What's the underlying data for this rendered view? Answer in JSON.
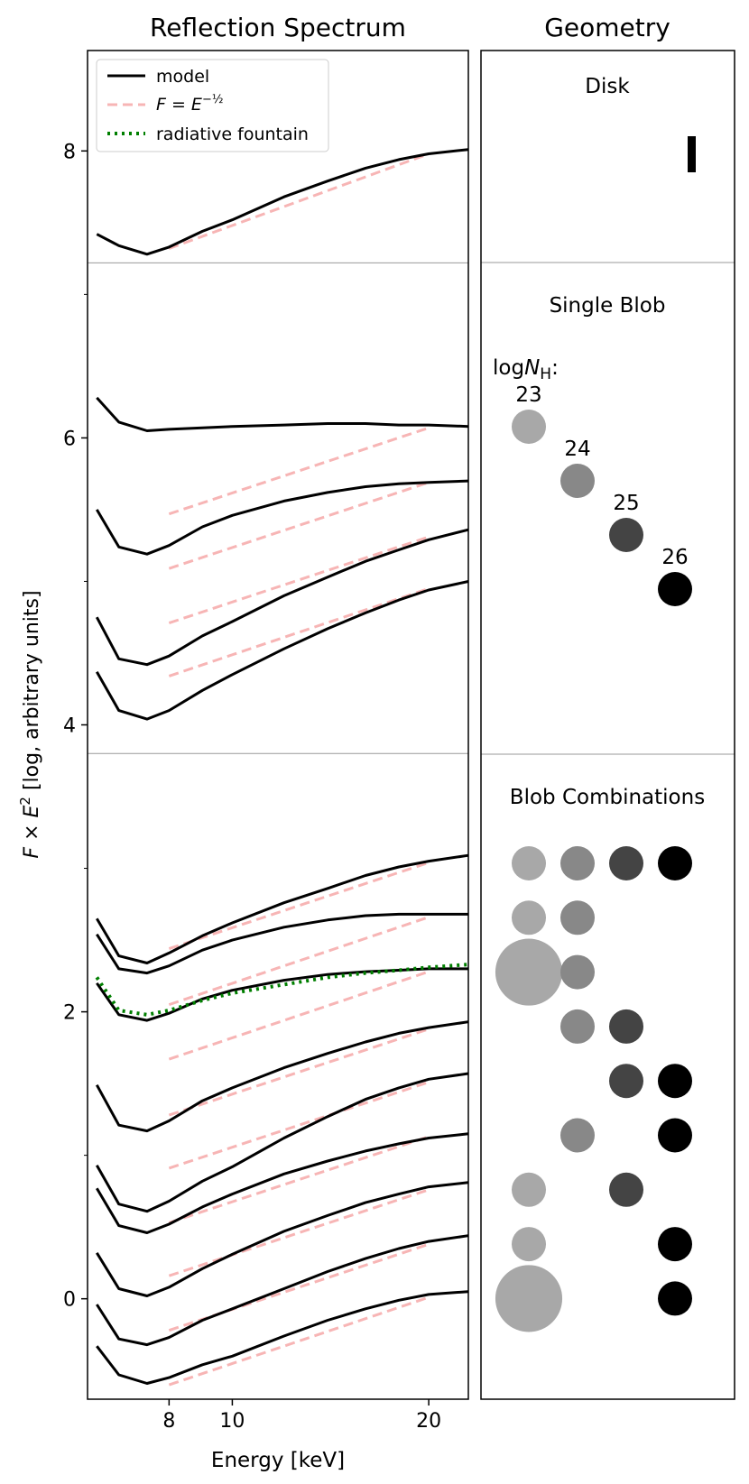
{
  "chart_data": {
    "type": "line",
    "panels": {
      "spectrum": {
        "title": "Reflection Spectrum",
        "xlabel": "Energy [keV]",
        "ylabel_prefix": "F × E",
        "ylabel_exp": "2",
        "ylabel_suffix": " [log, arbitrary units]",
        "xscale": "log",
        "xlim": [
          6.0,
          23.0
        ],
        "ylim": [
          -0.7,
          8.7
        ],
        "xticks": [
          {
            "value": 8,
            "label": "8"
          },
          {
            "value": 10,
            "label": "10"
          },
          {
            "value": 20,
            "label": "20"
          }
        ],
        "yticks": [
          {
            "value": 0,
            "label": "0"
          },
          {
            "value": 2,
            "label": "2"
          },
          {
            "value": 4,
            "label": "4"
          },
          {
            "value": 6,
            "label": "6"
          },
          {
            "value": 8,
            "label": "8"
          }
        ],
        "yticks_minor": [
          1,
          3,
          5,
          7
        ],
        "separators_y": [
          7.22,
          3.8
        ],
        "legend": {
          "position": "upper-left",
          "entries": [
            {
              "label": "model",
              "style": "solid",
              "color": "#000000"
            },
            {
              "label": "F = E^-1/2",
              "label_base": "F = E",
              "label_exp": "−½",
              "style": "dashed",
              "color": "#f7b5b5"
            },
            {
              "label": "radiative fountain",
              "style": "dotted",
              "color": "#007f00"
            }
          ]
        },
        "model_x": [
          6.2,
          6.7,
          7.4,
          8,
          9,
          10,
          12,
          14,
          16,
          18,
          20,
          23
        ],
        "model_series": [
          {
            "name": "disk",
            "values": [
              7.42,
              7.34,
              7.28,
              7.33,
              7.44,
              7.52,
              7.68,
              7.79,
              7.88,
              7.94,
              7.98,
              8.01
            ]
          },
          {
            "name": "single blob logNH 23",
            "values": [
              6.28,
              6.11,
              6.05,
              6.06,
              6.07,
              6.08,
              6.09,
              6.1,
              6.1,
              6.09,
              6.09,
              6.08
            ]
          },
          {
            "name": "single blob logNH 24",
            "values": [
              5.5,
              5.24,
              5.19,
              5.25,
              5.38,
              5.46,
              5.56,
              5.62,
              5.66,
              5.68,
              5.69,
              5.7
            ]
          },
          {
            "name": "single blob logNH 25",
            "values": [
              4.75,
              4.46,
              4.42,
              4.48,
              4.62,
              4.72,
              4.9,
              5.03,
              5.14,
              5.22,
              5.29,
              5.36
            ]
          },
          {
            "name": "single blob logNH 26",
            "values": [
              4.37,
              4.1,
              4.04,
              4.1,
              4.24,
              4.35,
              4.53,
              4.67,
              4.78,
              4.87,
              4.94,
              5.0
            ]
          },
          {
            "name": "combination 1",
            "values": [
              2.65,
              2.39,
              2.34,
              2.41,
              2.53,
              2.62,
              2.76,
              2.86,
              2.95,
              3.01,
              3.05,
              3.09
            ]
          },
          {
            "name": "combination 2",
            "values": [
              2.54,
              2.3,
              2.27,
              2.32,
              2.43,
              2.5,
              2.59,
              2.64,
              2.67,
              2.68,
              2.68,
              2.68
            ]
          },
          {
            "name": "combination 3",
            "values": [
              2.2,
              1.98,
              1.94,
              1.99,
              2.09,
              2.15,
              2.22,
              2.26,
              2.28,
              2.29,
              2.3,
              2.3
            ]
          },
          {
            "name": "combination 4",
            "values": [
              1.49,
              1.21,
              1.17,
              1.24,
              1.38,
              1.47,
              1.61,
              1.71,
              1.79,
              1.85,
              1.89,
              1.93
            ]
          },
          {
            "name": "combination 5",
            "values": [
              0.93,
              0.66,
              0.61,
              0.68,
              0.82,
              0.92,
              1.12,
              1.27,
              1.39,
              1.47,
              1.53,
              1.57
            ]
          },
          {
            "name": "combination 6",
            "values": [
              0.77,
              0.51,
              0.46,
              0.52,
              0.64,
              0.73,
              0.87,
              0.96,
              1.03,
              1.08,
              1.12,
              1.15
            ]
          },
          {
            "name": "combination 7",
            "values": [
              0.32,
              0.07,
              0.02,
              0.08,
              0.21,
              0.31,
              0.47,
              0.58,
              0.67,
              0.73,
              0.78,
              0.81
            ]
          },
          {
            "name": "combination 8",
            "values": [
              -0.04,
              -0.28,
              -0.32,
              -0.27,
              -0.15,
              -0.07,
              0.07,
              0.19,
              0.28,
              0.35,
              0.4,
              0.44
            ]
          },
          {
            "name": "combination 9",
            "values": [
              -0.33,
              -0.53,
              -0.59,
              -0.55,
              -0.46,
              -0.4,
              -0.26,
              -0.15,
              -0.07,
              -0.01,
              0.03,
              0.05
            ]
          }
        ],
        "powerlaw_x": [
          8,
          20
        ],
        "powerlaw_series": [
          [
            7.32,
            7.98
          ],
          [
            5.47,
            6.07
          ],
          [
            5.09,
            5.69
          ],
          [
            4.71,
            5.31
          ],
          [
            4.34,
            4.95
          ],
          [
            2.44,
            3.04
          ],
          [
            2.05,
            2.66
          ],
          [
            1.67,
            2.28
          ],
          [
            1.28,
            1.88
          ],
          [
            0.91,
            1.51
          ],
          [
            0.53,
            1.13
          ],
          [
            0.16,
            0.76
          ],
          [
            -0.22,
            0.38
          ],
          [
            -0.6,
            0.01
          ]
        ],
        "fountain": {
          "x": [
            6.2,
            6.7,
            7.4,
            8,
            9,
            10,
            12,
            14,
            16,
            18,
            20,
            23
          ],
          "values": [
            2.24,
            2.01,
            1.98,
            2.01,
            2.08,
            2.13,
            2.19,
            2.24,
            2.27,
            2.29,
            2.31,
            2.33
          ]
        }
      },
      "geometry": {
        "title": "Geometry",
        "sections": {
          "disk": {
            "label": "Disk"
          },
          "single_blob": {
            "label": "Single Blob",
            "nh_prefix": "log",
            "nh_var": "N",
            "nh_sub": "H",
            "nh_suffix": ":",
            "blobs": [
              {
                "logNH": "23",
                "color": "#a8a8a8",
                "column": 0,
                "row": 0
              },
              {
                "logNH": "24",
                "color": "#888888",
                "column": 1,
                "row": 1
              },
              {
                "logNH": "25",
                "color": "#444444",
                "column": 2,
                "row": 2
              },
              {
                "logNH": "26",
                "color": "#000000",
                "column": 3,
                "row": 3
              }
            ]
          },
          "blob_combinations": {
            "label": "Blob Combinations",
            "column_colors": [
              "#a8a8a8",
              "#888888",
              "#444444",
              "#000000"
            ],
            "rows": [
              [
                1,
                1,
                1,
                1
              ],
              [
                1,
                1,
                0,
                0
              ],
              [
                2,
                1,
                0,
                0
              ],
              [
                0,
                1,
                1,
                0
              ],
              [
                0,
                0,
                1,
                1
              ],
              [
                0,
                1,
                0,
                1
              ],
              [
                1,
                0,
                1,
                0
              ],
              [
                1,
                0,
                0,
                1
              ],
              [
                2,
                0,
                0,
                1
              ]
            ]
          }
        }
      }
    }
  }
}
